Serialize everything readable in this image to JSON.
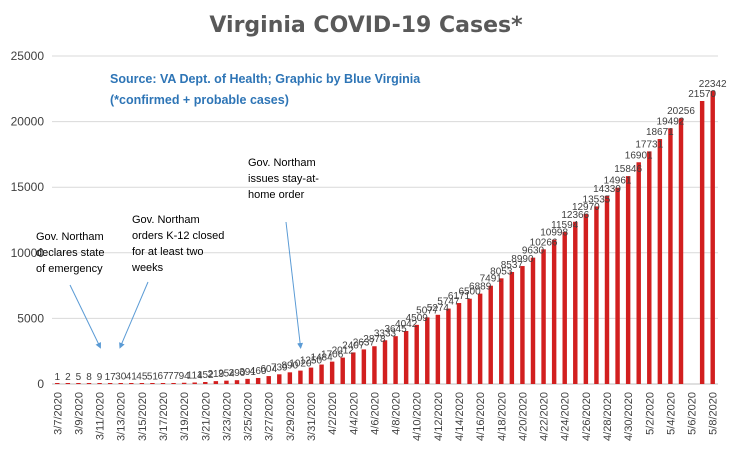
{
  "chart_data": {
    "type": "bar",
    "title": "Virginia COVID-19 Cases*",
    "subtitle_lines": [
      "Source: VA Dept. of Health; Graphic by Blue Virginia",
      "(*confirmed + probable cases)"
    ],
    "xlabel": "",
    "ylabel": "",
    "ylim": [
      0,
      25000
    ],
    "yticks": [
      "0",
      "5000",
      "10000",
      "15000",
      "20000",
      "25000"
    ],
    "grid": true,
    "bar_color": "#d21f1f",
    "x_start_date": "3/7/2020",
    "categories": [
      "3/7/2020",
      "3/8/2020",
      "3/9/2020",
      "3/10/2020",
      "3/11/2020",
      "3/12/2020",
      "3/13/2020",
      "3/14/2020",
      "3/15/2020",
      "3/16/2020",
      "3/17/2020",
      "3/18/2020",
      "3/19/2020",
      "3/20/2020",
      "3/21/2020",
      "3/22/2020",
      "3/23/2020",
      "3/24/2020",
      "3/25/2020",
      "3/26/2020",
      "3/27/2020",
      "3/28/2020",
      "3/29/2020",
      "3/30/2020",
      "3/31/2020",
      "4/1/2020",
      "4/2/2020",
      "4/3/2020",
      "4/4/2020",
      "4/5/2020",
      "4/6/2020",
      "4/7/2020",
      "4/8/2020",
      "4/9/2020",
      "4/10/2020",
      "4/11/2020",
      "4/12/2020",
      "4/13/2020",
      "4/14/2020",
      "4/15/2020",
      "4/16/2020",
      "4/17/2020",
      "4/18/2020",
      "4/19/2020",
      "4/20/2020",
      "4/21/2020",
      "4/22/2020",
      "4/23/2020",
      "4/24/2020",
      "4/25/2020",
      "4/26/2020",
      "4/27/2020",
      "4/28/2020",
      "4/29/2020",
      "4/30/2020",
      "5/1/2020",
      "5/2/2020",
      "5/3/2020",
      "5/4/2020",
      "5/5/2020",
      "5/6/2020",
      "5/7/2020",
      "5/8/2020"
    ],
    "values": [
      1,
      2,
      5,
      8,
      9,
      17,
      30,
      41,
      45,
      51,
      67,
      77,
      94,
      114,
      152,
      219,
      254,
      290,
      391,
      460,
      604,
      739,
      890,
      1020,
      1250,
      1484,
      1706,
      2012,
      2407,
      2637,
      2878,
      3333,
      3645,
      4042,
      4509,
      5077,
      5274,
      5747,
      6171,
      6500,
      6889,
      7491,
      8053,
      8537,
      8990,
      9630,
      10266,
      10998,
      11594,
      12366,
      12970,
      13535,
      14339,
      14961,
      15846,
      16901,
      17731,
      18671,
      19492,
      20256,
      null,
      21570,
      22342
    ],
    "data_labels": [
      "1",
      "2",
      "5",
      "8",
      "9",
      "17",
      "30",
      "41",
      "45",
      "51",
      "67",
      "77",
      "94",
      "114",
      "152",
      "219",
      "254",
      "290",
      "391",
      "460",
      "604",
      "739",
      "890",
      "1020",
      "1250",
      "1484",
      "1706",
      "2012",
      "2407",
      "2637",
      "2878",
      "3333",
      "3645",
      "4042",
      "4509",
      "5077",
      "5274",
      "5747",
      "6171",
      "6500",
      "6889",
      "7491",
      "8053",
      "8537",
      "8990",
      "9630",
      "10266",
      "10998",
      "11594",
      "12366",
      "12970",
      "13535",
      "14339",
      "14961",
      "15846",
      "16901",
      "17731",
      "18671",
      "19492",
      "20256",
      "",
      "21570",
      "22342"
    ],
    "xtick_labels": [
      "3/7/2020",
      "3/9/2020",
      "3/11/2020",
      "3/13/2020",
      "3/15/2020",
      "3/17/2020",
      "3/19/2020",
      "3/21/2020",
      "3/23/2020",
      "3/25/2020",
      "3/27/2020",
      "3/29/2020",
      "3/31/2020",
      "4/2/2020",
      "4/4/2020",
      "4/6/2020",
      "4/8/2020",
      "4/10/2020",
      "4/12/2020",
      "4/14/2020",
      "4/16/2020",
      "4/18/2020",
      "4/20/2020",
      "4/22/2020",
      "4/24/2020",
      "4/26/2020",
      "4/28/2020",
      "4/30/2020",
      "5/2/2020",
      "5/4/2020",
      "5/6/2020",
      "5/8/2020"
    ],
    "annotations": [
      {
        "lines": [
          "Gov. Northam",
          "declares state",
          "of emergency"
        ],
        "date": "3/11/2020"
      },
      {
        "lines": [
          "Gov. Northam",
          "orders K-12 closed",
          "for at least two",
          "weeks"
        ],
        "date": "3/13/2020"
      },
      {
        "lines": [
          "Gov. Northam",
          "issues stay-at-",
          "home order"
        ],
        "date": "3/30/2020"
      }
    ]
  }
}
